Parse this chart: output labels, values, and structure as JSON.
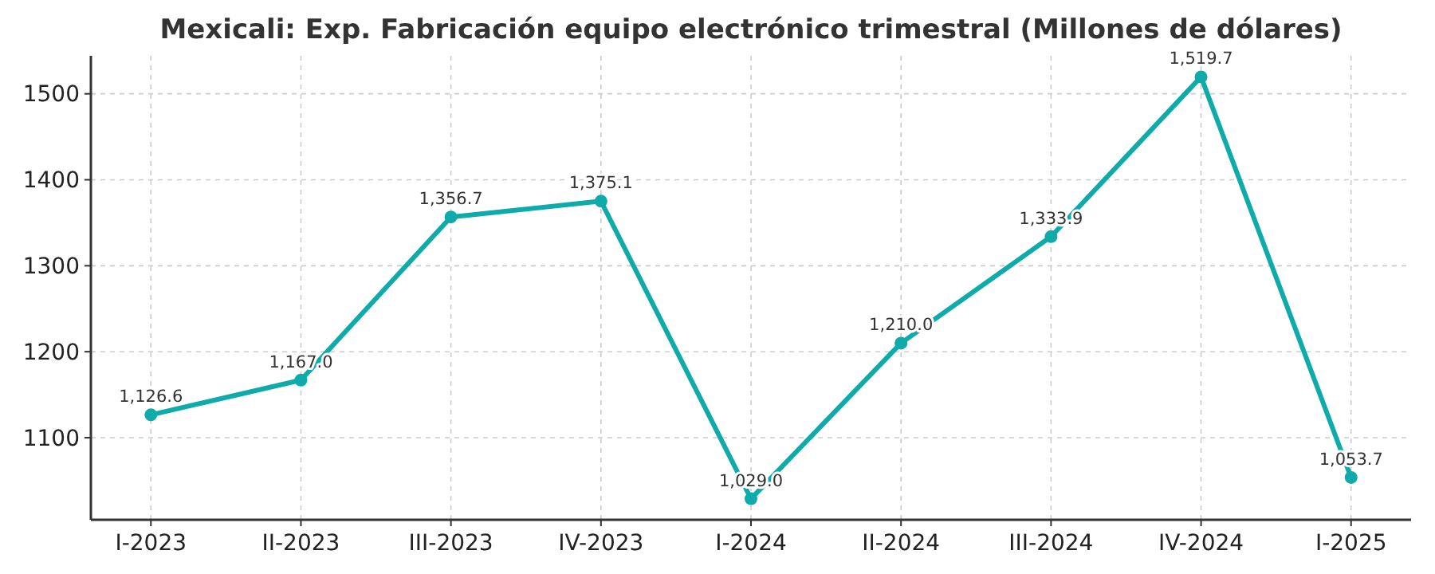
{
  "chart_data": {
    "type": "line",
    "title": "Mexicali: Exp. Fabricación equipo electrónico trimestral (Millones de dólares)",
    "categories": [
      "I-2023",
      "II-2023",
      "III-2023",
      "IV-2023",
      "I-2024",
      "II-2024",
      "III-2024",
      "IV-2024",
      "I-2025"
    ],
    "series": [
      {
        "color": "#0fabab",
        "values": [
          1126.6,
          1167.0,
          1356.7,
          1375.1,
          1029.0,
          1210.0,
          1333.9,
          1519.7,
          1053.7
        ],
        "value_labels": [
          "1,126.6",
          "1,167.0",
          "1,356.7",
          "1,375.1",
          "1,029.0",
          "1,210.0",
          "1,333.9",
          "1,519.7",
          "1,053.7"
        ]
      }
    ],
    "ylim": [
      1004.5,
      1544.2
    ],
    "yticks": [
      1100,
      1200,
      1300,
      1400,
      1500
    ],
    "grid": true,
    "marker": "circle",
    "line_style": "solid"
  }
}
